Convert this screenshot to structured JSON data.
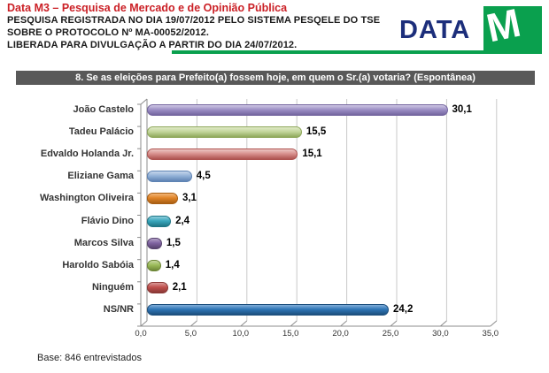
{
  "header": {
    "brand_line": "Data M3 –  Pesquisa de Mercado e de Opinião Pública",
    "reg_line1": "PESQUISA REGISTRADA NO DIA 19/07/2012 PELO SISTEMA PESQELE DO TSE",
    "reg_line2": "SOBRE O PROTOCOLO Nº MA-00052/2012.",
    "reg_line3": "LIBERADA PARA DIVULGAÇÃO A PARTIR DO DIA 24/07/2012.",
    "logo": {
      "text": "DATA",
      "m": "M",
      "green": "#0AA04E",
      "navy": "#1C2E7B"
    }
  },
  "question_bar": {
    "text": "8. Se as eleições para Prefeito(a) fossem hoje, em quem o Sr.(a) votaria? (Espontânea)",
    "bg": "#595959"
  },
  "chart_data": {
    "type": "bar",
    "orientation": "horizontal",
    "style": "3d-cylinder",
    "categories": [
      "João Castelo",
      "Tadeu Palácio",
      "Edvaldo Holanda Jr.",
      "Eliziane Gama",
      "Washington Oliveira",
      "Flávio Dino",
      "Marcos Silva",
      "Haroldo Sabóia",
      "Ninguém",
      "NS/NR"
    ],
    "values": [
      30.1,
      15.5,
      15.1,
      4.5,
      3.1,
      2.4,
      1.5,
      1.4,
      2.1,
      24.2
    ],
    "value_labels": [
      "30,1",
      "15,5",
      "15,1",
      "4,5",
      "3,1",
      "2,4",
      "1,5",
      "1,4",
      "2,1",
      "24,2"
    ],
    "bar_colors": [
      {
        "light": "#CFC8E4",
        "base": "#9D90C6",
        "dark": "#74659F"
      },
      {
        "light": "#E0EAC8",
        "base": "#C3D69B",
        "dark": "#8FA85B"
      },
      {
        "light": "#EDC6C4",
        "base": "#D8908D",
        "dark": "#AE5350"
      },
      {
        "light": "#C6D6EB",
        "base": "#93B1D7",
        "dark": "#5E83B4"
      },
      {
        "light": "#F2B678",
        "base": "#E08428",
        "dark": "#A85E13"
      },
      {
        "light": "#90CEDC",
        "base": "#38A7BC",
        "dark": "#1F7686"
      },
      {
        "light": "#B3A2C7",
        "base": "#8064A2",
        "dark": "#57436E"
      },
      {
        "light": "#C6D79F",
        "base": "#9BBB59",
        "dark": "#6D8637"
      },
      {
        "light": "#DA9B99",
        "base": "#C0504D",
        "dark": "#8A3836"
      },
      {
        "light": "#82AEDA",
        "base": "#2E75B6",
        "dark": "#1D4F7D"
      }
    ],
    "xlim": [
      0,
      35
    ],
    "x_ticks": [
      "0,0",
      "5,0",
      "10,0",
      "15,0",
      "20,0",
      "25,0",
      "30,0",
      "35,0"
    ],
    "grid": true,
    "title": "8. Se as eleições para Prefeito(a) fossem hoje, em quem o Sr.(a) votaria? (Espontânea)"
  },
  "footer": {
    "base_note": "Base: 846 entrevistados"
  }
}
